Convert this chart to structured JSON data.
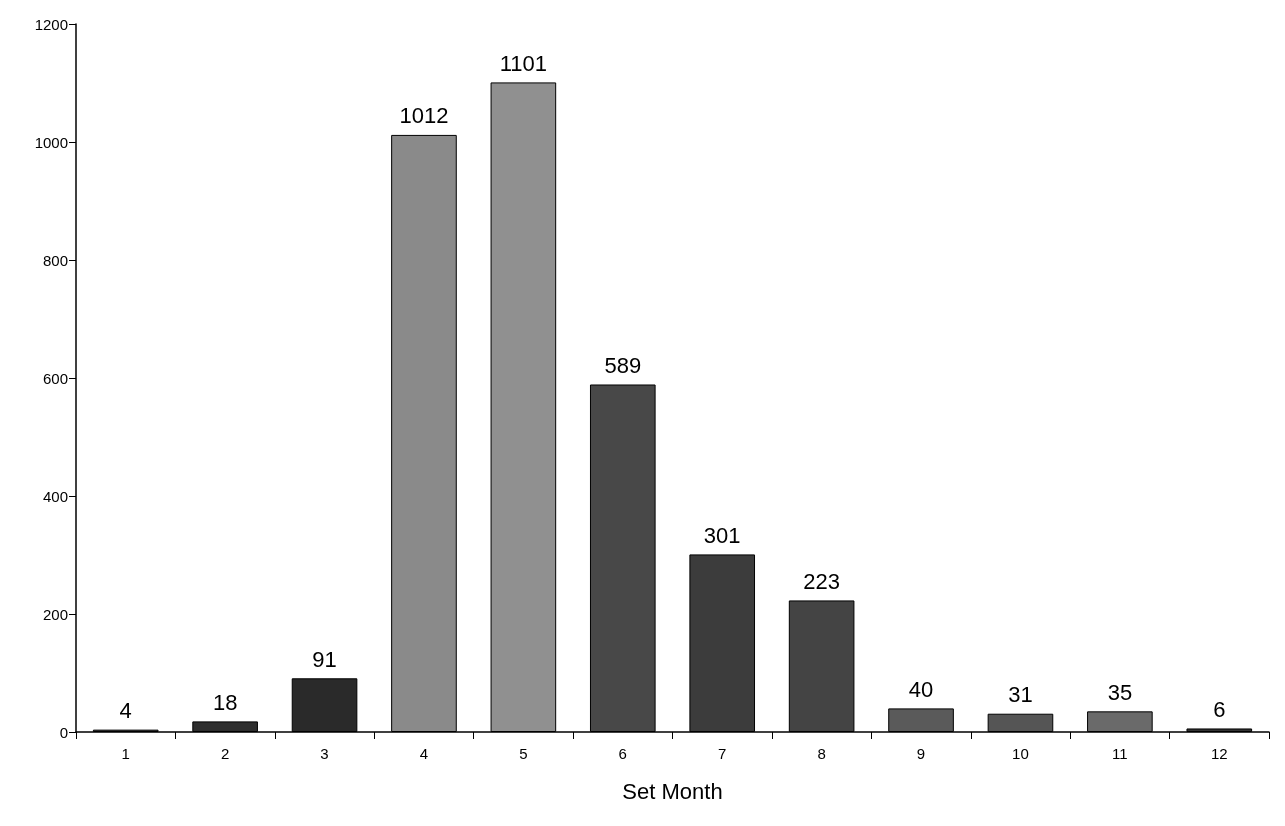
{
  "chart_data": {
    "type": "bar",
    "xlabel": "Set Month",
    "categories": [
      "1",
      "2",
      "3",
      "4",
      "5",
      "6",
      "7",
      "8",
      "9",
      "10",
      "11",
      "12"
    ],
    "values": [
      4,
      18,
      91,
      1012,
      1101,
      589,
      301,
      223,
      40,
      31,
      35,
      6
    ],
    "colors": [
      "#333333",
      "#2e2e2e",
      "#2a2a2a",
      "#8a8a8a",
      "#909090",
      "#484848",
      "#3c3c3c",
      "#444444",
      "#5a5a5a",
      "#555555",
      "#6a6a6a",
      "#333333"
    ],
    "ylim": [
      0,
      1200
    ],
    "yticks": [
      0,
      200,
      400,
      600,
      800,
      1000,
      1200
    ],
    "data_labels": true,
    "grid": false
  }
}
